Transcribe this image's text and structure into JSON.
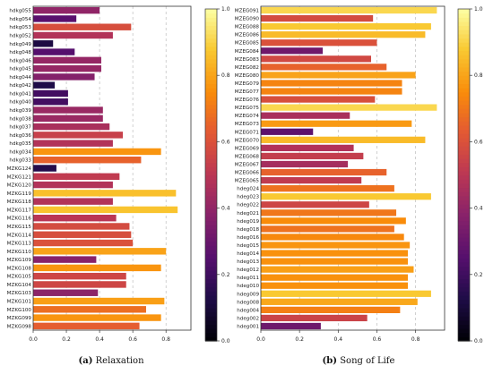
{
  "colors": {
    "colormap": "inferno",
    "background": "#ffffff",
    "grid": "#cccccc",
    "text": "#222222"
  },
  "chart_data": [
    {
      "type": "bar",
      "orientation": "horizontal",
      "caption_label": "(a)",
      "caption_text": "Relaxation",
      "xlim": [
        0,
        0.95
      ],
      "xticks": [
        "0.0",
        "0.2",
        "0.4",
        "0.6",
        "0.8"
      ],
      "grid": true,
      "colorbar": {
        "range": [
          0,
          1
        ],
        "ticks": [
          "0.0",
          "0.2",
          "0.4",
          "0.6",
          "0.8",
          "1.0"
        ]
      },
      "categories": [
        "hdkg055",
        "hdkg054",
        "hdkg053",
        "hdkg052",
        "hdkg049",
        "hdkg048",
        "hdkg046",
        "hdkg045",
        "hdkg044",
        "hdkg042",
        "hdkg041",
        "hdkg040",
        "hdkg039",
        "hdkg038",
        "hdkg037",
        "hdkg036",
        "hdkg035",
        "hdkg034",
        "hdkg033",
        "MZKG124",
        "MZKG121",
        "MZKG120",
        "MZKG119",
        "MZKG118",
        "MZKG117",
        "MZKG116",
        "MZKG115",
        "MZKG114",
        "MZKG113",
        "MZKG110",
        "MZKG109",
        "MZKG108",
        "MZKG105",
        "MZKG104",
        "MZKG103",
        "MZKG101",
        "MZKG100",
        "MZKG099",
        "MZKG098"
      ],
      "values": [
        0.4,
        0.26,
        0.59,
        0.48,
        0.12,
        0.25,
        0.41,
        0.41,
        0.37,
        0.13,
        0.21,
        0.21,
        0.42,
        0.42,
        0.46,
        0.54,
        0.48,
        0.77,
        0.65,
        0.14,
        0.52,
        0.48,
        0.86,
        0.48,
        0.87,
        0.5,
        0.58,
        0.59,
        0.6,
        0.8,
        0.38,
        0.77,
        0.56,
        0.56,
        0.39,
        0.79,
        0.68,
        0.77,
        0.64
      ]
    },
    {
      "type": "bar",
      "orientation": "horizontal",
      "caption_label": "(b)",
      "caption_text": "Song of Life",
      "xlim": [
        0,
        0.95
      ],
      "xticks": [
        "0.0",
        "0.2",
        "0.4",
        "0.6",
        "0.8"
      ],
      "grid": true,
      "colorbar": {
        "range": [
          0,
          1
        ],
        "ticks": [
          "0.0",
          "0.2",
          "0.4",
          "0.6",
          "0.8",
          "1.0"
        ]
      },
      "categories": [
        "MZEG091",
        "MZEG090",
        "MZEG088",
        "MZEG086",
        "MZEG085",
        "MZEG084",
        "MZEG083",
        "MZEG082",
        "MZEG080",
        "MZEG079",
        "MZEG077",
        "MZEG076",
        "MZEG075",
        "MZEG074",
        "MZEG073",
        "MZEG071",
        "MZEG070",
        "MZEG069",
        "MZEG068",
        "MZEG067",
        "MZEG066",
        "MZEG065",
        "hdeg024",
        "hdeg023",
        "hdeg022",
        "hdeg021",
        "hdeg019",
        "hdeg018",
        "hdeg016",
        "hdeg015",
        "hdeg014",
        "hdeg013",
        "hdeg012",
        "hdeg011",
        "hdeg010",
        "hdeg009",
        "hdeg008",
        "hdeg004",
        "hdeg002",
        "hdeg001"
      ],
      "values": [
        0.91,
        0.58,
        0.88,
        0.85,
        0.6,
        0.32,
        0.57,
        0.65,
        0.8,
        0.73,
        0.73,
        0.59,
        0.91,
        0.46,
        0.78,
        0.27,
        0.85,
        0.48,
        0.53,
        0.45,
        0.65,
        0.52,
        0.69,
        0.88,
        0.56,
        0.7,
        0.75,
        0.69,
        0.74,
        0.77,
        0.76,
        0.76,
        0.79,
        0.76,
        0.76,
        0.88,
        0.81,
        0.72,
        0.55,
        0.31
      ]
    }
  ]
}
